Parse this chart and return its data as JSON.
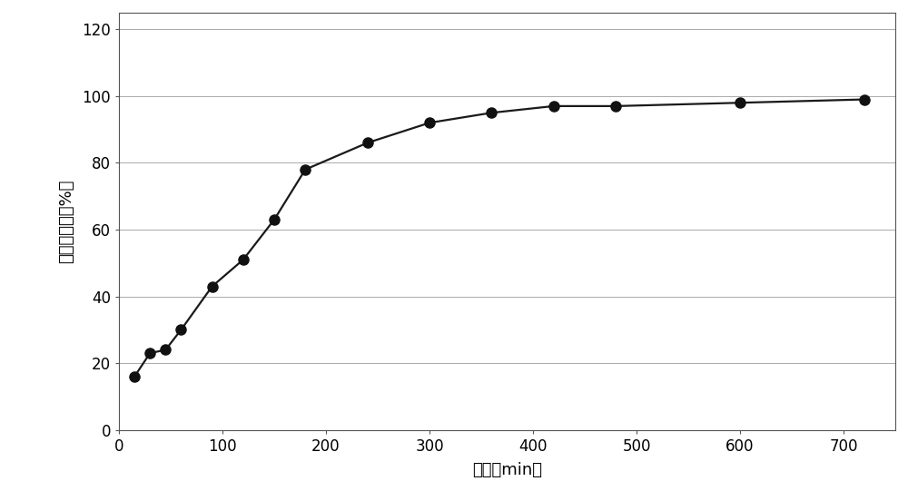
{
  "x": [
    15,
    30,
    45,
    60,
    90,
    120,
    150,
    180,
    240,
    300,
    360,
    420,
    480,
    600,
    720
  ],
  "y": [
    16,
    23,
    24,
    30,
    43,
    51,
    63,
    78,
    86,
    92,
    95,
    97,
    97,
    98,
    99
  ],
  "xlabel": "时间（min）",
  "ylabel": "降解率（重量%）",
  "xlim": [
    0,
    750
  ],
  "ylim": [
    0,
    125
  ],
  "xticks": [
    0,
    100,
    200,
    300,
    400,
    500,
    600,
    700
  ],
  "yticks": [
    0,
    20,
    40,
    60,
    80,
    100,
    120
  ],
  "line_color": "#1a1a1a",
  "marker_color": "#111111",
  "marker_size": 8,
  "line_width": 1.6,
  "grid_color": "#aaaaaa",
  "background_color": "#ffffff",
  "xlabel_fontsize": 13,
  "ylabel_fontsize": 13,
  "tick_fontsize": 12,
  "spine_color": "#555555"
}
